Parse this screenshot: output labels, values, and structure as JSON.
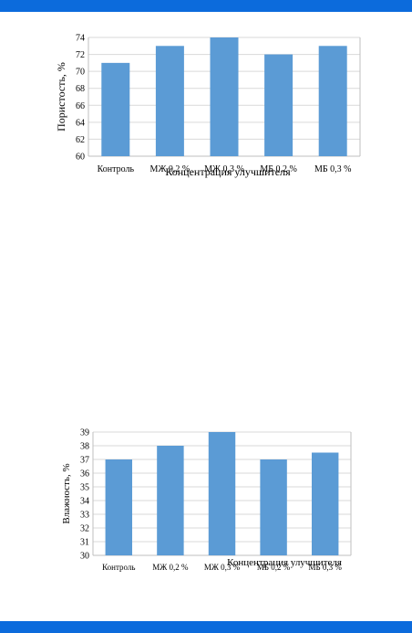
{
  "colors": {
    "band": "#0c6bdc",
    "bar": "#5b9bd5",
    "grid": "#d9d9d9"
  },
  "chart_data": [
    {
      "type": "bar",
      "title": "",
      "categories": [
        "Контроль",
        "МЖ 0,2 %",
        "МЖ 0,3 %",
        "МБ 0,2 %",
        "МБ 0,3 %"
      ],
      "values": [
        71,
        73,
        74,
        72,
        73
      ],
      "xlabel": "Концентрация улучшителя",
      "ylabel": "Пористость, %",
      "ylim": [
        60,
        74
      ],
      "yticks": [
        60,
        62,
        64,
        66,
        68,
        70,
        72,
        74
      ],
      "grid": true,
      "legend": "none"
    },
    {
      "type": "bar",
      "title": "",
      "categories": [
        "Контроль",
        "МЖ 0,2 %",
        "МЖ 0,3 %",
        "МБ 0,2 %",
        "МБ 0,3 %"
      ],
      "values": [
        37,
        38,
        39,
        37,
        37.5
      ],
      "xlabel": "Концентрация улучшителя",
      "ylabel": "Влажность, %",
      "ylim": [
        30,
        39
      ],
      "yticks": [
        30,
        31,
        32,
        33,
        34,
        35,
        36,
        37,
        38,
        39
      ],
      "grid": true,
      "legend": "none"
    }
  ]
}
